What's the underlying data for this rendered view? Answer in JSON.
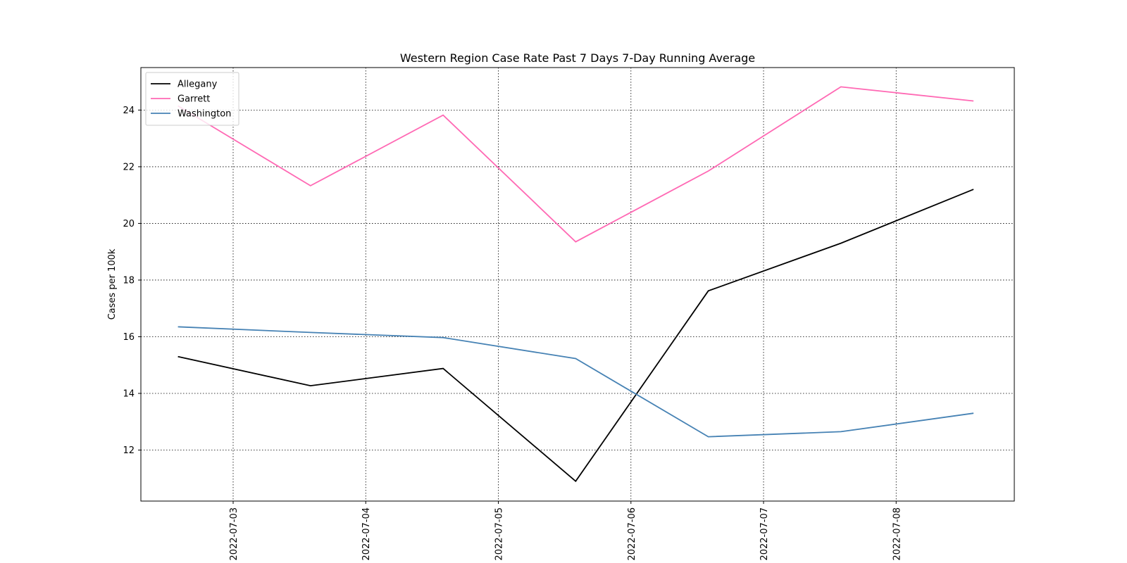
{
  "chart_data": {
    "type": "line",
    "title": "Western Region Case Rate  Past 7 Days 7-Day Running Average",
    "xlabel": "",
    "ylabel": "Cases per 100k",
    "x": [
      "2022-07-02 14:00",
      "2022-07-03 14:00",
      "2022-07-04 14:00",
      "2022-07-05 14:00",
      "2022-07-06 14:00",
      "2022-07-07 14:00",
      "2022-07-08 14:00"
    ],
    "x_ticks": [
      "2022-07-03",
      "2022-07-04",
      "2022-07-05",
      "2022-07-06",
      "2022-07-07",
      "2022-07-08"
    ],
    "xlim": [
      "2022-07-02 07:18",
      "2022-07-08 21:23"
    ],
    "ylim": [
      10.2,
      25.5
    ],
    "y_ticks": [
      12,
      14,
      16,
      18,
      20,
      22,
      24
    ],
    "grid": true,
    "legend_position": "upper-left",
    "series": [
      {
        "name": "Allegany",
        "color": "#000000",
        "values": [
          15.3,
          14.27,
          14.88,
          10.9,
          17.62,
          19.3,
          21.2
        ]
      },
      {
        "name": "Garrett",
        "color": "#ff69b4",
        "values": [
          24.15,
          21.33,
          23.82,
          19.35,
          21.85,
          24.82,
          24.32
        ]
      },
      {
        "name": "Washington",
        "color": "#4682b4",
        "values": [
          16.35,
          16.15,
          15.97,
          15.23,
          12.47,
          12.65,
          13.3
        ]
      }
    ]
  }
}
